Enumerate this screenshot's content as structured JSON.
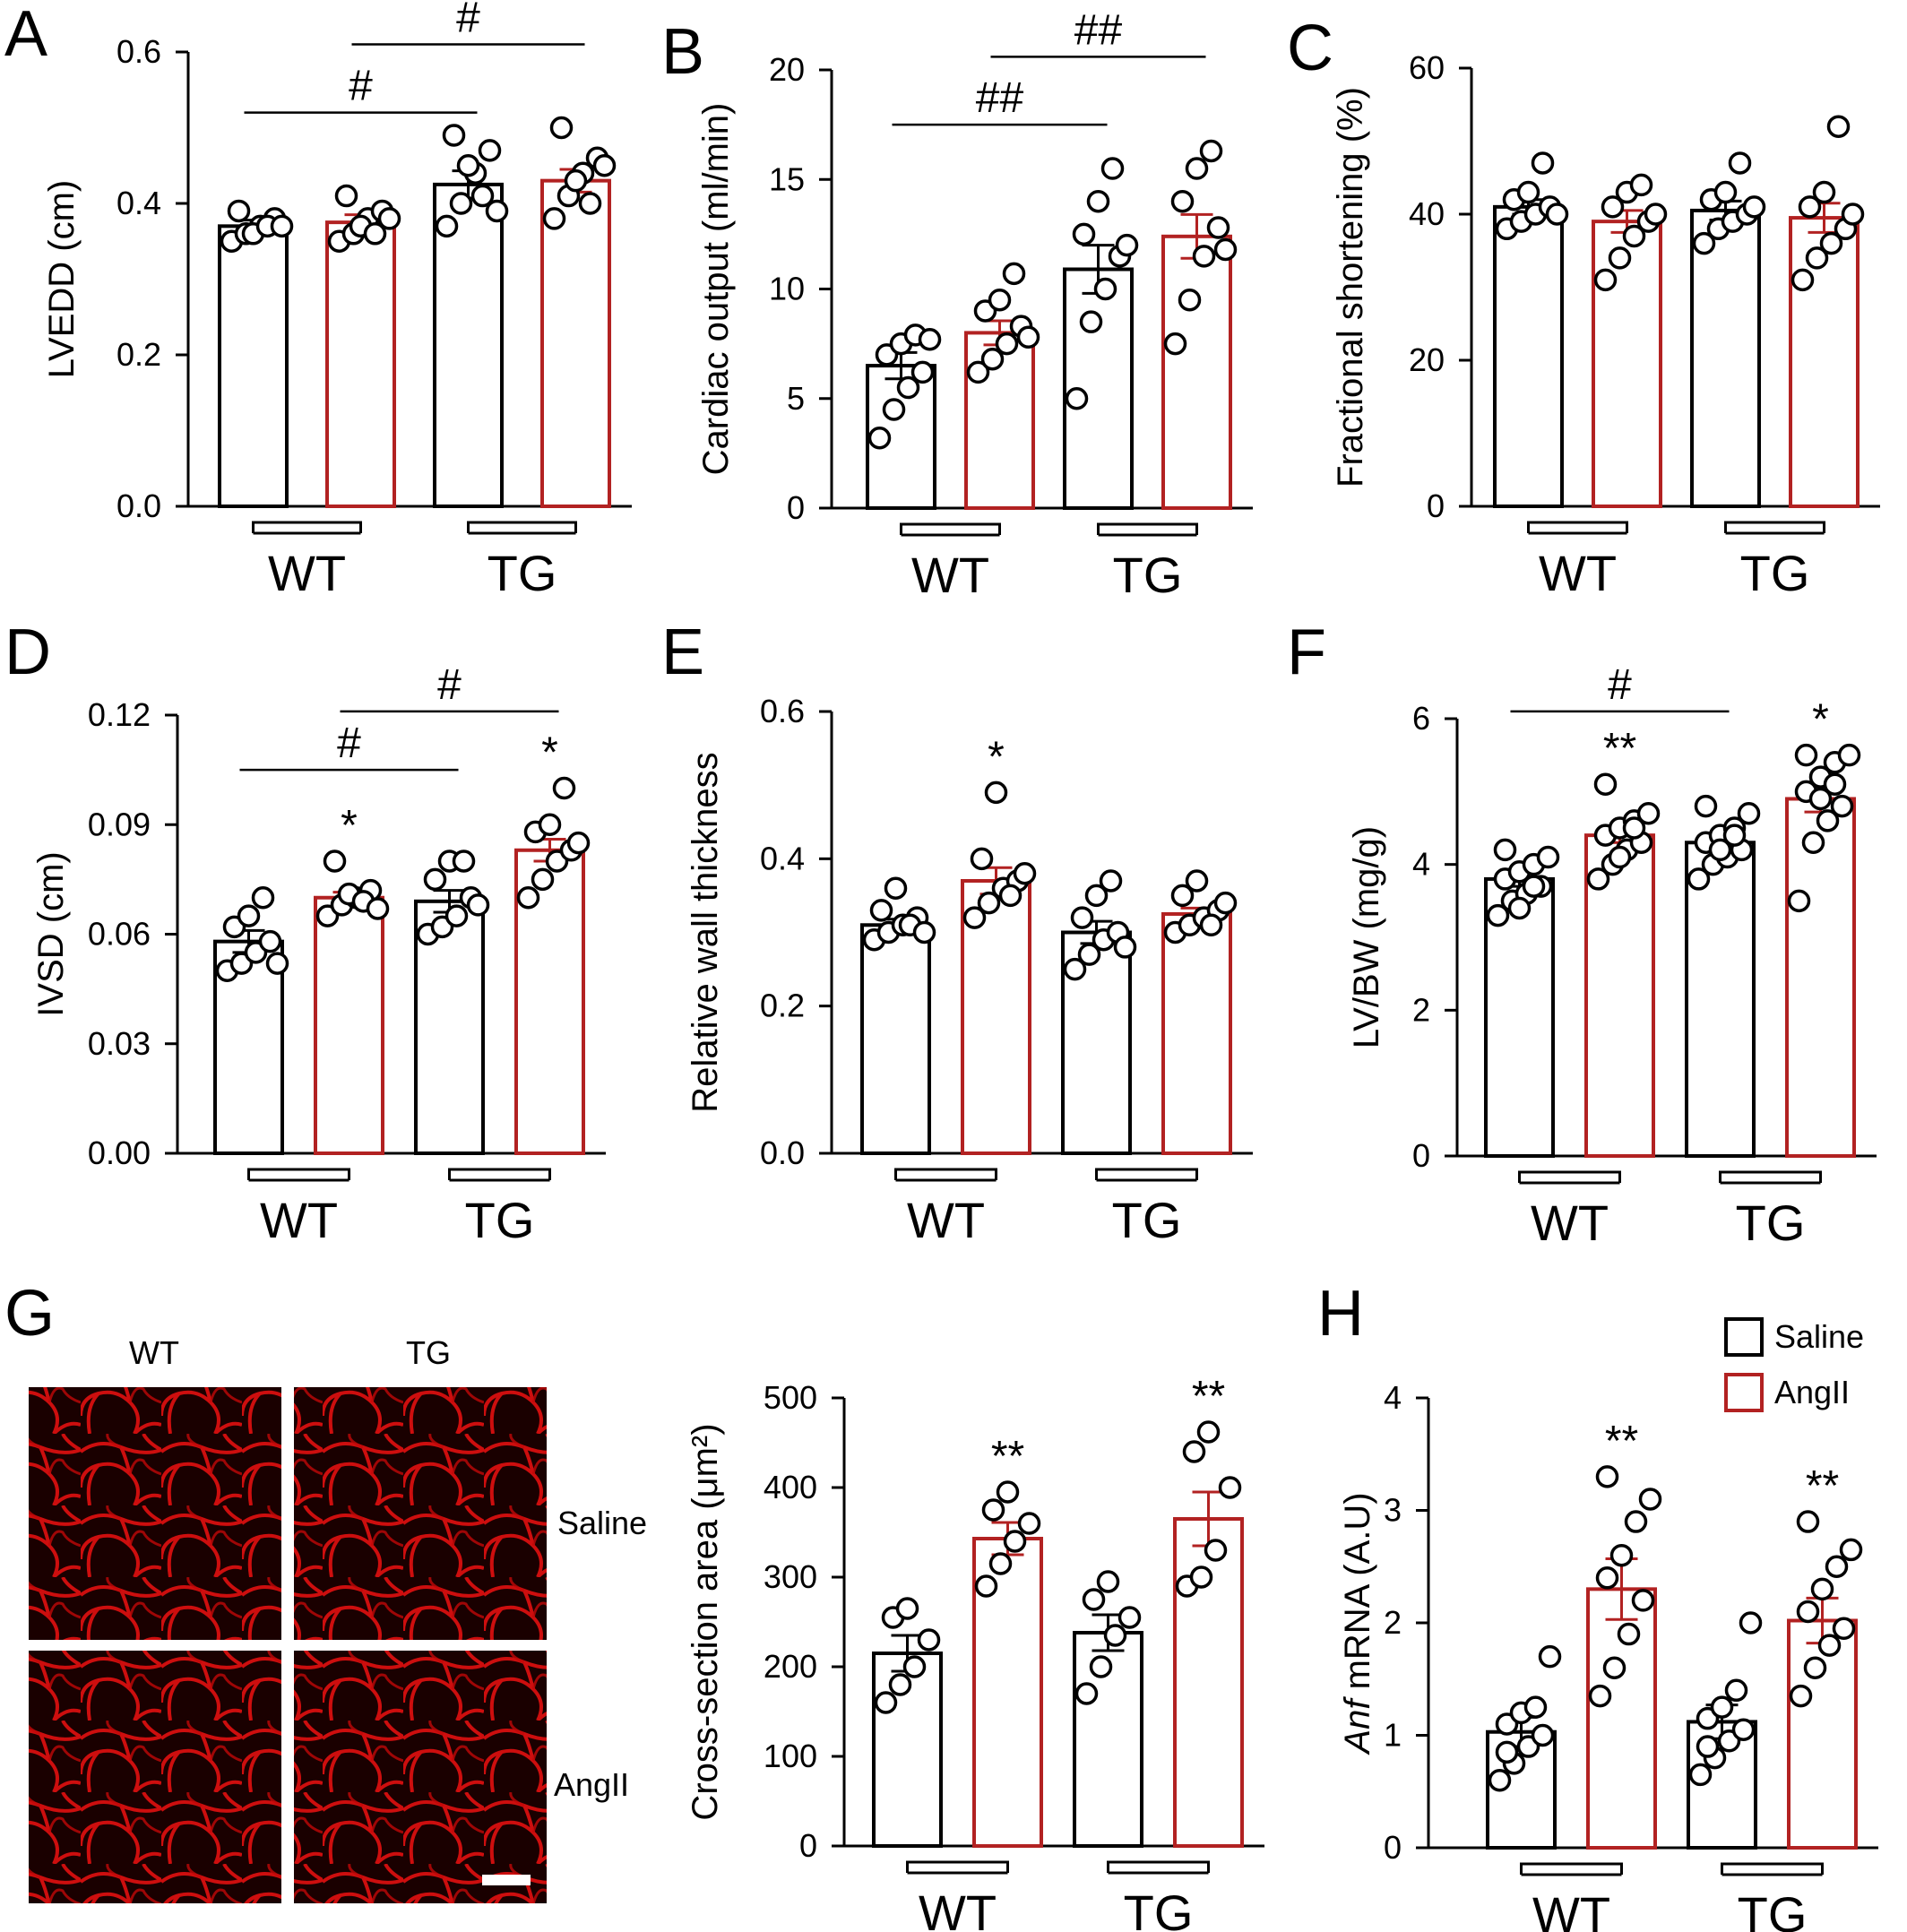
{
  "legend": {
    "items": [
      {
        "label": "Saline",
        "color": "#000000"
      },
      {
        "label": "AngII",
        "color": "#b22222"
      }
    ]
  },
  "colors": {
    "saline": "#000000",
    "angii": "#b22222",
    "micrograph_bg": "#1a0000",
    "micrograph_fg": "#e01010"
  },
  "micrograph": {
    "letter": "G",
    "col_labels": [
      "WT",
      "TG"
    ],
    "row_labels": [
      "Saline",
      "AngII"
    ],
    "has_scale_bar": true
  },
  "chart_data": [
    {
      "letter": "A",
      "type": "bar",
      "ylabel": "LVEDD (cm)",
      "ylim": [
        0,
        0.6
      ],
      "yticks": [
        "0.0",
        "0.2",
        "0.4",
        "0.6"
      ],
      "yticks_values": [
        0,
        0.2,
        0.4,
        0.6
      ],
      "groups": [
        "WT",
        "TG"
      ],
      "bars": [
        {
          "group": "WT",
          "condition": "Saline",
          "mean": 0.37,
          "sem": 0.008,
          "points": [
            0.35,
            0.36,
            0.37,
            0.38,
            0.39,
            0.36,
            0.37,
            0.37
          ],
          "annot": ""
        },
        {
          "group": "WT",
          "condition": "AngII",
          "mean": 0.375,
          "sem": 0.01,
          "points": [
            0.35,
            0.36,
            0.38,
            0.39,
            0.41,
            0.37,
            0.36,
            0.38
          ],
          "annot": ""
        },
        {
          "group": "TG",
          "condition": "Saline",
          "mean": 0.425,
          "sem": 0.018,
          "points": [
            0.37,
            0.4,
            0.44,
            0.47,
            0.49,
            0.45,
            0.41,
            0.39
          ],
          "annot": ""
        },
        {
          "group": "TG",
          "condition": "AngII",
          "mean": 0.43,
          "sem": 0.015,
          "points": [
            0.38,
            0.41,
            0.44,
            0.46,
            0.5,
            0.43,
            0.4,
            0.45
          ],
          "annot": ""
        }
      ],
      "brackets": [
        {
          "from": 0,
          "to": 2,
          "label": "#",
          "value": 0.52
        },
        {
          "from": 1,
          "to": 3,
          "label": "#",
          "value": 0.61
        }
      ]
    },
    {
      "letter": "B",
      "type": "bar",
      "ylabel": "Cardiac output (ml/min)",
      "ylim": [
        0,
        20
      ],
      "yticks": [
        "0",
        "5",
        "10",
        "15",
        "20"
      ],
      "yticks_values": [
        0,
        5,
        10,
        15,
        20
      ],
      "groups": [
        "WT",
        "TG"
      ],
      "bars": [
        {
          "group": "WT",
          "condition": "Saline",
          "mean": 6.5,
          "sem": 0.6,
          "points": [
            3.2,
            4.5,
            5.5,
            6.2,
            7.0,
            7.5,
            7.9,
            7.7
          ],
          "annot": ""
        },
        {
          "group": "WT",
          "condition": "AngII",
          "mean": 8.0,
          "sem": 0.55,
          "points": [
            6.2,
            6.8,
            7.5,
            8.3,
            9.0,
            9.5,
            10.7,
            7.8
          ],
          "annot": ""
        },
        {
          "group": "TG",
          "condition": "Saline",
          "mean": 10.9,
          "sem": 1.1,
          "points": [
            5.0,
            8.5,
            10.0,
            11.5,
            12.5,
            14.0,
            15.5,
            12.0
          ],
          "annot": ""
        },
        {
          "group": "TG",
          "condition": "AngII",
          "mean": 12.4,
          "sem": 1.0,
          "points": [
            7.5,
            9.5,
            11.5,
            12.8,
            14.0,
            15.5,
            16.3,
            11.8
          ],
          "annot": ""
        }
      ],
      "brackets": [
        {
          "from": 0,
          "to": 2,
          "label": "##",
          "value": 17.5
        },
        {
          "from": 1,
          "to": 3,
          "label": "##",
          "value": 20.6
        }
      ]
    },
    {
      "letter": "C",
      "type": "bar",
      "ylabel": "Fractional shortening (%)",
      "ylim": [
        0,
        60
      ],
      "yticks": [
        "0",
        "20",
        "40",
        "60"
      ],
      "yticks_values": [
        0,
        20,
        40,
        60
      ],
      "groups": [
        "WT",
        "TG"
      ],
      "bars": [
        {
          "group": "WT",
          "condition": "Saline",
          "mean": 41,
          "sem": 1.0,
          "points": [
            38,
            39,
            40,
            41,
            42,
            43,
            47,
            40
          ],
          "annot": ""
        },
        {
          "group": "WT",
          "condition": "AngII",
          "mean": 39,
          "sem": 1.5,
          "points": [
            31,
            34,
            37,
            39,
            41,
            43,
            44,
            40
          ],
          "annot": ""
        },
        {
          "group": "TG",
          "condition": "Saline",
          "mean": 40.5,
          "sem": 1.3,
          "points": [
            36,
            38,
            39,
            40,
            42,
            43,
            47,
            41
          ],
          "annot": ""
        },
        {
          "group": "TG",
          "condition": "AngII",
          "mean": 39.5,
          "sem": 2.0,
          "points": [
            31,
            34,
            36,
            38,
            41,
            43,
            52,
            40
          ],
          "annot": ""
        }
      ],
      "brackets": []
    },
    {
      "letter": "D",
      "type": "bar",
      "ylabel": "IVSD (cm)",
      "ylim": [
        0,
        0.12
      ],
      "yticks": [
        "0.00",
        "0.03",
        "0.06",
        "0.09",
        "0.12"
      ],
      "yticks_values": [
        0,
        0.03,
        0.06,
        0.09,
        0.12
      ],
      "groups": [
        "WT",
        "TG"
      ],
      "bars": [
        {
          "group": "WT",
          "condition": "Saline",
          "mean": 0.058,
          "sem": 0.003,
          "points": [
            0.05,
            0.052,
            0.055,
            0.058,
            0.062,
            0.065,
            0.07,
            0.052
          ],
          "annot": ""
        },
        {
          "group": "WT",
          "condition": "AngII",
          "mean": 0.07,
          "sem": 0.0015,
          "points": [
            0.065,
            0.068,
            0.07,
            0.072,
            0.08,
            0.071,
            0.069,
            0.067
          ],
          "annot": "*"
        },
        {
          "group": "TG",
          "condition": "Saline",
          "mean": 0.069,
          "sem": 0.003,
          "points": [
            0.06,
            0.062,
            0.065,
            0.07,
            0.075,
            0.08,
            0.08,
            0.068
          ],
          "annot": ""
        },
        {
          "group": "TG",
          "condition": "AngII",
          "mean": 0.083,
          "sem": 0.003,
          "points": [
            0.07,
            0.075,
            0.08,
            0.083,
            0.088,
            0.09,
            0.1,
            0.085
          ],
          "annot": "*"
        }
      ],
      "brackets": [
        {
          "from": 0,
          "to": 2,
          "label": "#",
          "value": 0.105
        },
        {
          "from": 1,
          "to": 3,
          "label": "#",
          "value": 0.121
        }
      ]
    },
    {
      "letter": "E",
      "type": "bar",
      "ylabel": "Relative wall thickness",
      "ylim": [
        0,
        0.6
      ],
      "yticks": [
        "0.0",
        "0.2",
        "0.4",
        "0.6"
      ],
      "yticks_values": [
        0,
        0.2,
        0.4,
        0.6
      ],
      "groups": [
        "WT",
        "TG"
      ],
      "bars": [
        {
          "group": "WT",
          "condition": "Saline",
          "mean": 0.31,
          "sem": 0.008,
          "points": [
            0.29,
            0.3,
            0.31,
            0.32,
            0.33,
            0.36,
            0.31,
            0.3
          ],
          "annot": ""
        },
        {
          "group": "WT",
          "condition": "AngII",
          "mean": 0.37,
          "sem": 0.018,
          "points": [
            0.32,
            0.34,
            0.36,
            0.37,
            0.4,
            0.49,
            0.35,
            0.38
          ],
          "annot": "*"
        },
        {
          "group": "TG",
          "condition": "Saline",
          "mean": 0.3,
          "sem": 0.015,
          "points": [
            0.25,
            0.27,
            0.29,
            0.3,
            0.32,
            0.35,
            0.37,
            0.28
          ],
          "annot": ""
        },
        {
          "group": "TG",
          "condition": "AngII",
          "mean": 0.325,
          "sem": 0.008,
          "points": [
            0.3,
            0.31,
            0.32,
            0.33,
            0.35,
            0.37,
            0.31,
            0.34
          ],
          "annot": ""
        }
      ],
      "brackets": []
    },
    {
      "letter": "F",
      "type": "bar",
      "ylabel": "LV/BW (mg/g)",
      "ylim": [
        0,
        6
      ],
      "yticks": [
        "0",
        "2",
        "4",
        "6"
      ],
      "yticks_values": [
        0,
        2,
        4,
        6
      ],
      "groups": [
        "WT",
        "TG"
      ],
      "bars": [
        {
          "group": "WT",
          "condition": "Saline",
          "mean": 3.8,
          "sem": 0.1,
          "points": [
            3.3,
            3.5,
            3.6,
            3.7,
            3.8,
            3.9,
            4.0,
            4.1,
            4.2,
            3.4,
            3.7
          ],
          "annot": ""
        },
        {
          "group": "WT",
          "condition": "AngII",
          "mean": 4.4,
          "sem": 0.1,
          "points": [
            3.8,
            4.0,
            4.2,
            4.3,
            4.4,
            4.5,
            4.6,
            4.7,
            5.1,
            4.1,
            4.5
          ],
          "annot": "**"
        },
        {
          "group": "TG",
          "condition": "Saline",
          "mean": 4.3,
          "sem": 0.08,
          "points": [
            3.8,
            4.0,
            4.1,
            4.2,
            4.3,
            4.4,
            4.5,
            4.7,
            4.8,
            4.2,
            4.4
          ],
          "annot": ""
        },
        {
          "group": "TG",
          "condition": "AngII",
          "mean": 4.9,
          "sem": 0.18,
          "points": [
            3.5,
            4.3,
            4.6,
            4.8,
            5.0,
            5.2,
            5.4,
            5.5,
            5.5,
            4.9,
            5.1
          ],
          "annot": "*"
        }
      ],
      "brackets": [
        {
          "from": 0,
          "to": 2,
          "label": "#",
          "value": 6.1
        }
      ]
    },
    {
      "letter": "",
      "type": "bar",
      "ylabel": "Cross-section area (μm²)",
      "ylim": [
        0,
        500
      ],
      "yticks": [
        "0",
        "100",
        "200",
        "300",
        "400",
        "500"
      ],
      "yticks_values": [
        0,
        100,
        200,
        300,
        400,
        500
      ],
      "groups": [
        "WT",
        "TG"
      ],
      "bars": [
        {
          "group": "WT",
          "condition": "Saline",
          "mean": 215,
          "sem": 20,
          "points": [
            160,
            180,
            200,
            230,
            255,
            265
          ],
          "annot": ""
        },
        {
          "group": "WT",
          "condition": "AngII",
          "mean": 343,
          "sem": 18,
          "points": [
            290,
            315,
            340,
            360,
            375,
            395
          ],
          "annot": "**"
        },
        {
          "group": "TG",
          "condition": "Saline",
          "mean": 238,
          "sem": 20,
          "points": [
            170,
            200,
            235,
            255,
            275,
            295
          ],
          "annot": ""
        },
        {
          "group": "TG",
          "condition": "AngII",
          "mean": 365,
          "sem": 30,
          "points": [
            290,
            300,
            330,
            400,
            440,
            462
          ],
          "annot": "**"
        }
      ],
      "brackets": []
    },
    {
      "letter": "H",
      "type": "bar",
      "ylabel_italic": "Anf",
      "ylabel": " mRNA (A.U)",
      "ylim": [
        0,
        4
      ],
      "yticks": [
        "0",
        "1",
        "2",
        "3",
        "4"
      ],
      "yticks_values": [
        0,
        1,
        2,
        3,
        4
      ],
      "groups": [
        "WT",
        "TG"
      ],
      "bars": [
        {
          "group": "WT",
          "condition": "Saline",
          "mean": 1.03,
          "sem": 0.13,
          "points": [
            0.6,
            0.75,
            0.9,
            1.0,
            1.1,
            1.2,
            1.25,
            1.7,
            0.85
          ],
          "annot": ""
        },
        {
          "group": "WT",
          "condition": "AngII",
          "mean": 2.3,
          "sem": 0.27,
          "points": [
            1.35,
            1.6,
            1.9,
            2.2,
            2.4,
            2.6,
            2.9,
            3.1,
            3.3
          ],
          "annot": "**"
        },
        {
          "group": "TG",
          "condition": "Saline",
          "mean": 1.12,
          "sem": 0.15,
          "points": [
            0.65,
            0.8,
            0.95,
            1.05,
            1.15,
            1.25,
            1.4,
            2.0,
            0.9
          ],
          "annot": ""
        },
        {
          "group": "TG",
          "condition": "AngII",
          "mean": 2.02,
          "sem": 0.2,
          "points": [
            1.35,
            1.6,
            1.8,
            1.95,
            2.1,
            2.3,
            2.5,
            2.65,
            2.9
          ],
          "annot": "**"
        }
      ],
      "brackets": []
    }
  ]
}
